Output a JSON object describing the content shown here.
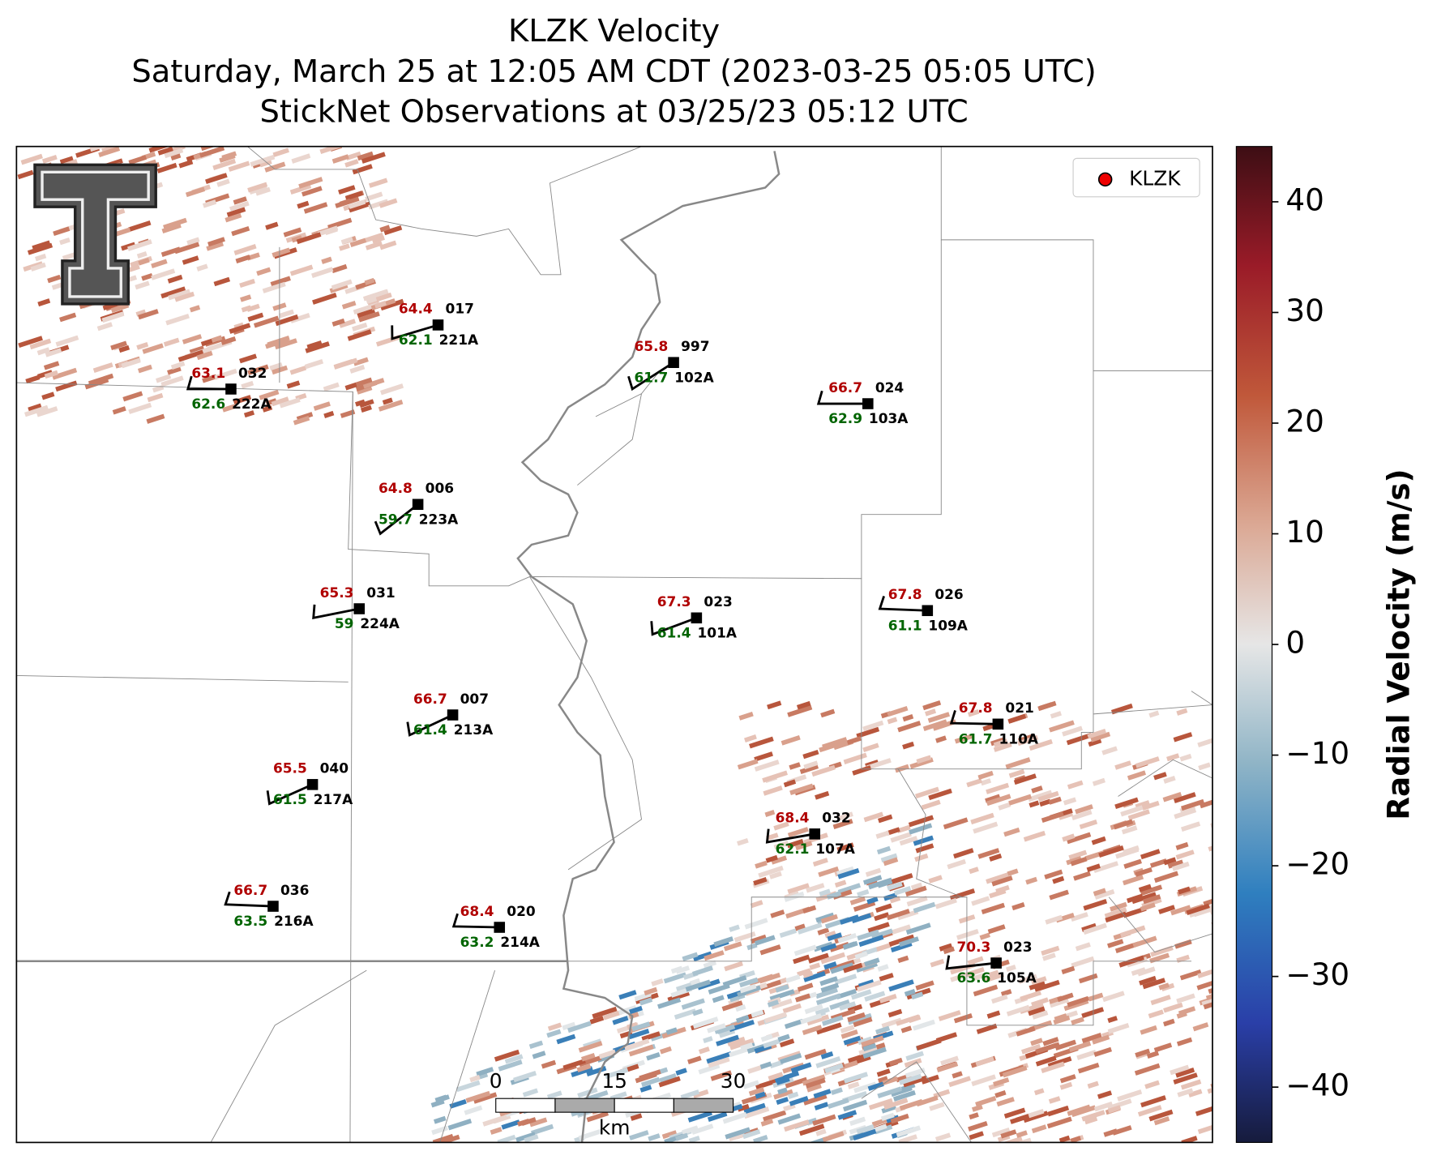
{
  "header": {
    "title": "KLZK Velocity",
    "subtitle": "Saturday, March 25 at 12:05 AM CDT (2023-03-25 05:05 UTC)",
    "subtitle2": "StickNet Observations at 03/25/23 05:12 UTC"
  },
  "legend": {
    "label": "KLZK"
  },
  "stations": [
    {
      "id": "221A",
      "temp": 64.4,
      "dew": 62.1,
      "pressure": "017"
    },
    {
      "id": "222A",
      "temp": 63.1,
      "dew": 62.6,
      "pressure": "032"
    },
    {
      "id": "102A",
      "temp": 65.8,
      "dew": 61.7,
      "pressure": "997"
    },
    {
      "id": "103A",
      "temp": 66.7,
      "dew": 62.9,
      "pressure": "024"
    },
    {
      "id": "223A",
      "temp": 64.8,
      "dew": 59.7,
      "pressure": "006"
    },
    {
      "id": "224A",
      "temp": 65.3,
      "dew": 59.0,
      "pressure": "031"
    },
    {
      "id": "101A",
      "temp": 67.3,
      "dew": 61.4,
      "pressure": "023"
    },
    {
      "id": "109A",
      "temp": 67.8,
      "dew": 61.1,
      "pressure": "026"
    },
    {
      "id": "213A",
      "temp": 66.7,
      "dew": 61.4,
      "pressure": "007"
    },
    {
      "id": "110A",
      "temp": 67.8,
      "dew": 61.7,
      "pressure": "021"
    },
    {
      "id": "217A",
      "temp": 65.5,
      "dew": 61.5,
      "pressure": "040"
    },
    {
      "id": "107A",
      "temp": 68.4,
      "dew": 62.1,
      "pressure": "032"
    },
    {
      "id": "216A",
      "temp": 66.7,
      "dew": 63.5,
      "pressure": "036"
    },
    {
      "id": "214A",
      "temp": 68.4,
      "dew": 63.2,
      "pressure": "020"
    },
    {
      "id": "105A",
      "temp": 70.3,
      "dew": 63.6,
      "pressure": "023"
    }
  ],
  "colorbar": {
    "label": "Radial Velocity (m/s)",
    "lim": [
      -45,
      45
    ],
    "ticks": [
      {
        "value": -40,
        "label": "−40"
      },
      {
        "value": -30,
        "label": "−30"
      },
      {
        "value": -20,
        "label": "−20"
      },
      {
        "value": -10,
        "label": "−10"
      },
      0,
      10,
      20,
      30,
      40
    ]
  },
  "scale_bar": {
    "ticks": [
      0,
      15,
      30
    ],
    "unit": "km"
  }
}
